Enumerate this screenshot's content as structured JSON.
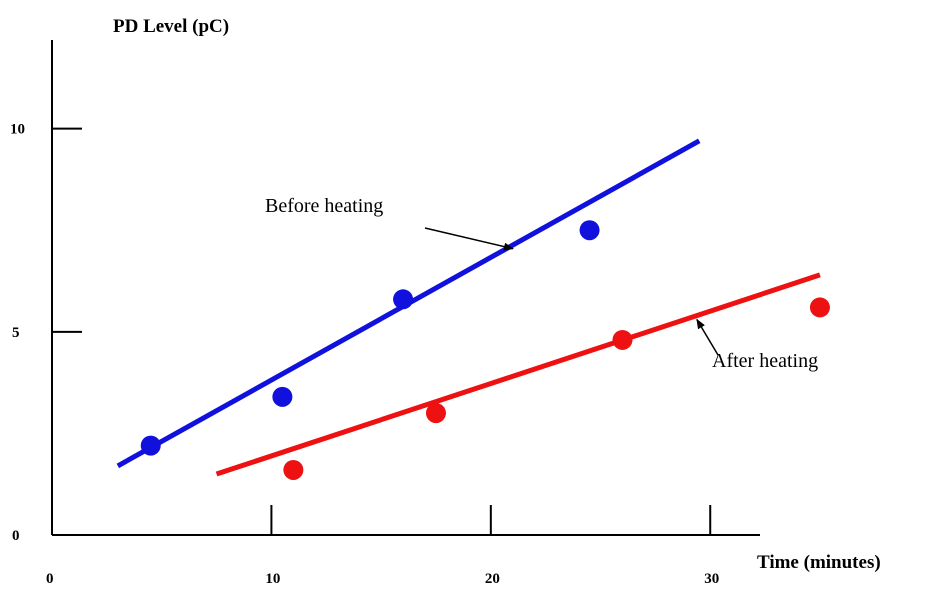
{
  "chart_data": {
    "type": "scatter",
    "ylabel": "PD Level (pC)",
    "xlabel": "Time (minutes)",
    "xlim": [
      0,
      34
    ],
    "ylim": [
      0,
      11
    ],
    "x_ticks": [
      0,
      10,
      20,
      30
    ],
    "y_ticks": [
      0,
      5,
      10
    ],
    "grid": false,
    "series": [
      {
        "name": "Before heating",
        "color": "#1111dd",
        "fit": {
          "x": [
            3,
            29.5
          ],
          "y": [
            1.7,
            9.7
          ]
        },
        "points": [
          {
            "x": 4.5,
            "y": 2.2
          },
          {
            "x": 10.5,
            "y": 3.4
          },
          {
            "x": 16,
            "y": 5.8
          },
          {
            "x": 24.5,
            "y": 7.5
          }
        ]
      },
      {
        "name": "After heating",
        "color": "#ee1111",
        "fit": {
          "x": [
            7.5,
            35
          ],
          "y": [
            1.5,
            6.4
          ]
        },
        "points": [
          {
            "x": 11,
            "y": 1.6
          },
          {
            "x": 17.5,
            "y": 3.0
          },
          {
            "x": 26,
            "y": 4.8
          },
          {
            "x": 35,
            "y": 5.6
          }
        ]
      }
    ],
    "annotations": [
      {
        "text": "Before heating",
        "target_x": 21.1,
        "target_y": 7.07
      },
      {
        "text": "After heating",
        "target_x": 29.3,
        "target_y": 5.45
      }
    ]
  }
}
